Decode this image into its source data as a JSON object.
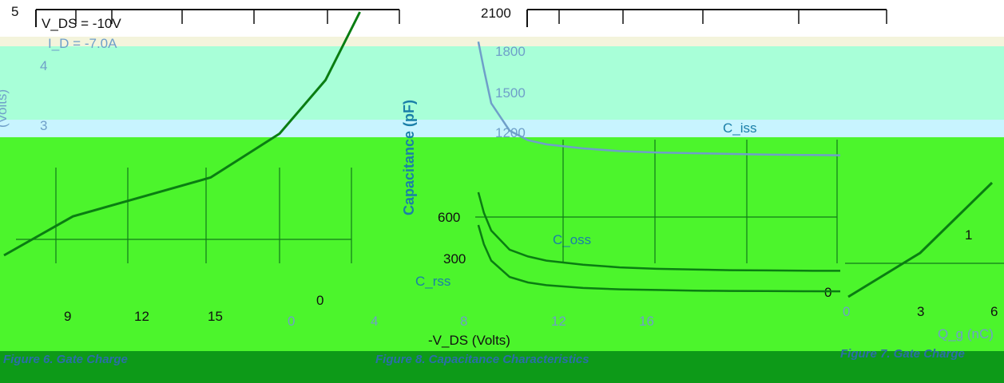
{
  "chart_data": [
    {
      "type": "line",
      "panel": "gate-charge-partial-left",
      "annotations": [
        "V_DS = -10V",
        "I_D = -7.0A"
      ],
      "y_ticks": [
        "5",
        "4",
        "3"
      ],
      "x_ticks": [
        "9",
        "12",
        "15"
      ],
      "ylabel": "(Volts)",
      "series": [
        {
          "points": [
            [
              0,
              0
            ],
            [
              3,
              0.8
            ],
            [
              6,
              1.2
            ],
            [
              9,
              1.6
            ],
            [
              12,
              2.5
            ],
            [
              14,
              3.6
            ],
            [
              15.5,
              5
            ]
          ]
        }
      ],
      "xlim": [
        0,
        16
      ],
      "ylim": [
        0,
        5
      ]
    },
    {
      "type": "line",
      "panel": "capacitance",
      "y_ticks": [
        "2100",
        "1800",
        "1500",
        "1200",
        "900",
        "600",
        "300",
        "0"
      ],
      "x_ticks": [
        "0",
        "4",
        "8",
        "12",
        "16"
      ],
      "xlabel": "-V_DS (Volts)",
      "ylabel": "Capacitance (pF)",
      "series": [
        {
          "name": "C_iss",
          "x": [
            0.3,
            0.6,
            1,
            2,
            3,
            4,
            6,
            8,
            10,
            12,
            14,
            16,
            18,
            20
          ],
          "y": [
            1900,
            1700,
            1450,
            1250,
            1180,
            1150,
            1120,
            1100,
            1090,
            1085,
            1080,
            1075,
            1072,
            1070
          ]
        },
        {
          "name": "C_oss",
          "x": [
            0.3,
            0.6,
            1,
            2,
            3,
            4,
            6,
            8,
            10,
            12,
            14,
            16,
            18,
            20
          ],
          "y": [
            800,
            650,
            520,
            380,
            330,
            300,
            270,
            250,
            240,
            235,
            230,
            228,
            226,
            225
          ]
        },
        {
          "name": "C_rss",
          "x": [
            0.3,
            0.6,
            1,
            2,
            3,
            4,
            6,
            8,
            10,
            12,
            14,
            16,
            18,
            20
          ],
          "y": [
            560,
            420,
            300,
            180,
            140,
            120,
            100,
            90,
            85,
            80,
            78,
            77,
            76,
            75
          ]
        }
      ],
      "xlim": [
        0,
        20
      ],
      "ylim": [
        0,
        2100
      ],
      "caption": "Figure 8. Capacitance Characteristics"
    },
    {
      "type": "line",
      "panel": "gate-charge-partial-right",
      "y_ticks": [
        "1",
        "0"
      ],
      "x_ticks": [
        "0",
        "3",
        "6"
      ],
      "xlabel": "Q_g (nC)",
      "caption": "Figure 7. Gate Charge",
      "series": [
        {
          "points": [
            [
              0,
              0
            ],
            [
              1.5,
              0.5
            ],
            [
              3,
              1
            ],
            [
              4.5,
              1.8
            ],
            [
              6,
              2.6
            ]
          ]
        }
      ],
      "xlim": [
        0,
        6
      ],
      "ylim": [
        0,
        2
      ]
    }
  ],
  "text": {
    "left_caption": "Figure 6. Gate Charge",
    "series_label_iss": "C_iss",
    "series_label_oss": "C_oss",
    "series_label_rss": "C_rss"
  },
  "colors": {
    "band_top": "#f4f4dc",
    "band_cyan": "#a8ffd8",
    "band_lightblue": "#c8f4ff",
    "band_green": "#4cf52c",
    "band_darkgreen": "#0d9a18",
    "curve": "#0a7d12",
    "gridline": "#117a1a"
  }
}
